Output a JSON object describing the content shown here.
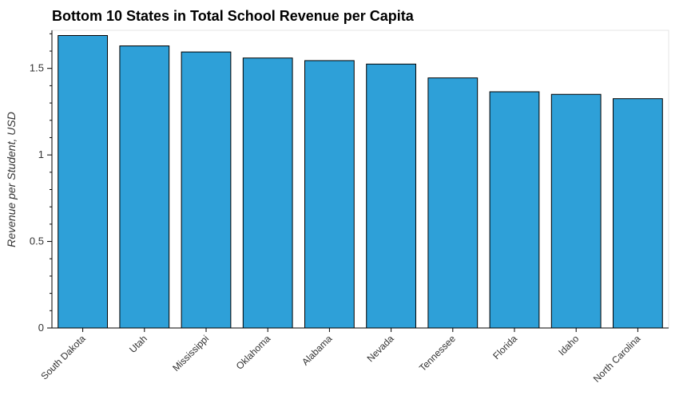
{
  "chart_data": {
    "type": "bar",
    "title": "Bottom 10 States in Total School Revenue per Capita",
    "xlabel": "",
    "ylabel": "Revenue per Student, USD",
    "categories": [
      "South Dakota",
      "Utah",
      "Mississippi",
      "Oklahoma",
      "Alabama",
      "Nevada",
      "Tennessee",
      "Florida",
      "Idaho",
      "North Carolina"
    ],
    "values": [
      1.69,
      1.63,
      1.595,
      1.56,
      1.545,
      1.525,
      1.445,
      1.365,
      1.35,
      1.325
    ],
    "ylim": [
      0,
      1.72
    ],
    "yticks": [
      0,
      0.5,
      1,
      1.5
    ],
    "ytick_labels": [
      "0",
      "0.5",
      "1",
      "1.5"
    ],
    "grid": false,
    "bar_color": "#2ea0d8",
    "bar_edge_color": "#000000"
  }
}
